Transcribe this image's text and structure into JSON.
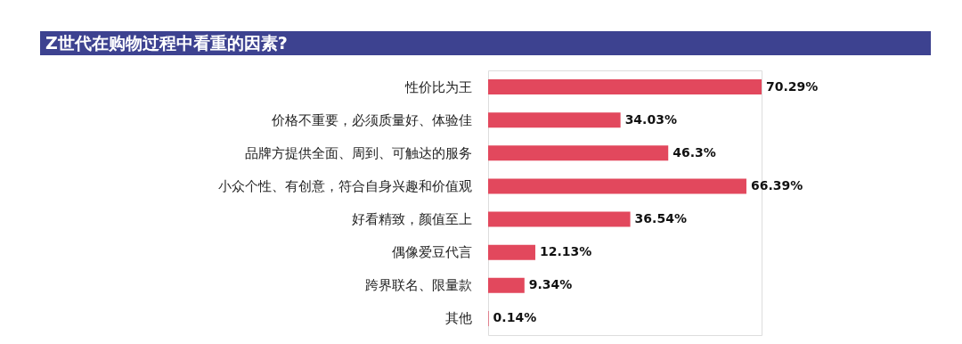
{
  "chart_data": {
    "type": "bar",
    "orientation": "horizontal",
    "title": "Z世代在购物过程中看重的因素?",
    "categories": [
      "性价比为王",
      "价格不重要，必须质量好、体验佳",
      "品牌方提供全面、周到、可触达的服务",
      "小众个性、有创意，符合自身兴趣和价值观",
      "好看精致，颜值至上",
      "偶像爱豆代言",
      "跨界联名、限量款",
      "其他"
    ],
    "values": [
      70.29,
      34.03,
      46.3,
      66.39,
      36.54,
      12.13,
      9.34,
      0.14
    ],
    "value_labels": [
      "70.29%",
      "34.03%",
      "46.3%",
      "66.39%",
      "36.54%",
      "12.13%",
      "9.34%",
      "0.14%"
    ],
    "color": "#e2485d"
  }
}
